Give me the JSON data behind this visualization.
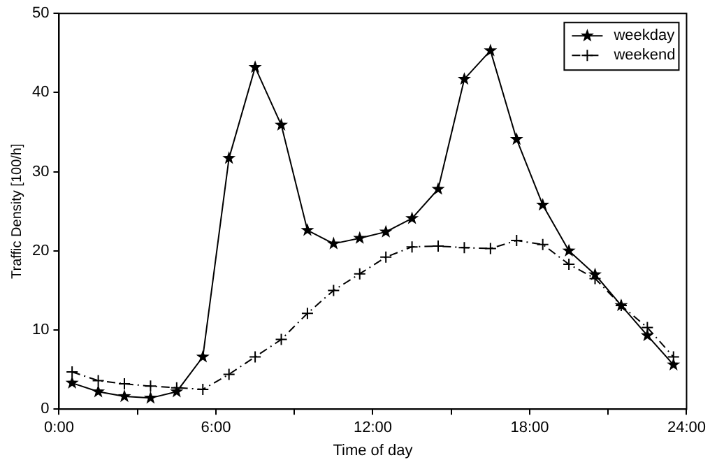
{
  "chart_data": {
    "type": "line",
    "xlabel": "Time of day",
    "ylabel": "Traffic Density [100/h]",
    "x": [
      0.5,
      1.5,
      2.5,
      3.5,
      4.5,
      5.5,
      6.5,
      7.5,
      8.5,
      9.5,
      10.5,
      11.5,
      12.5,
      13.5,
      14.5,
      15.5,
      16.5,
      17.5,
      18.5,
      19.5,
      20.5,
      21.5,
      22.5,
      23.5
    ],
    "series": [
      {
        "name": "weekday",
        "color": "#000000",
        "marker": "star",
        "line_style": "solid",
        "values": [
          3.3,
          2.2,
          1.6,
          1.4,
          2.2,
          6.6,
          31.7,
          43.2,
          35.9,
          22.6,
          20.9,
          21.6,
          22.4,
          24.1,
          27.8,
          41.7,
          45.3,
          34.1,
          25.8,
          20.0,
          17.0,
          13.1,
          9.3,
          5.6
        ]
      },
      {
        "name": "weekend",
        "color": "#000000",
        "marker": "cross",
        "line_style": "dashed",
        "values": [
          4.7,
          3.6,
          3.2,
          2.9,
          2.7,
          2.5,
          4.4,
          6.6,
          8.8,
          12.1,
          15.0,
          17.1,
          19.2,
          20.5,
          20.6,
          20.4,
          20.3,
          21.3,
          20.8,
          18.3,
          16.5,
          13.1,
          10.3,
          6.6
        ]
      }
    ],
    "xlim": [
      0,
      24
    ],
    "xticks": [
      {
        "value": 0,
        "label": "0:00"
      },
      {
        "value": 3,
        "label": null
      },
      {
        "value": 6,
        "label": "6:00"
      },
      {
        "value": 9,
        "label": null
      },
      {
        "value": 12,
        "label": "12:00"
      },
      {
        "value": 15,
        "label": null
      },
      {
        "value": 18,
        "label": "18:00"
      },
      {
        "value": 21,
        "label": null
      },
      {
        "value": 24,
        "label": "24:00"
      }
    ],
    "ylim": [
      0,
      50
    ],
    "yticks": [
      0,
      10,
      20,
      30,
      40,
      50
    ],
    "grid": false,
    "legend": "top right"
  }
}
